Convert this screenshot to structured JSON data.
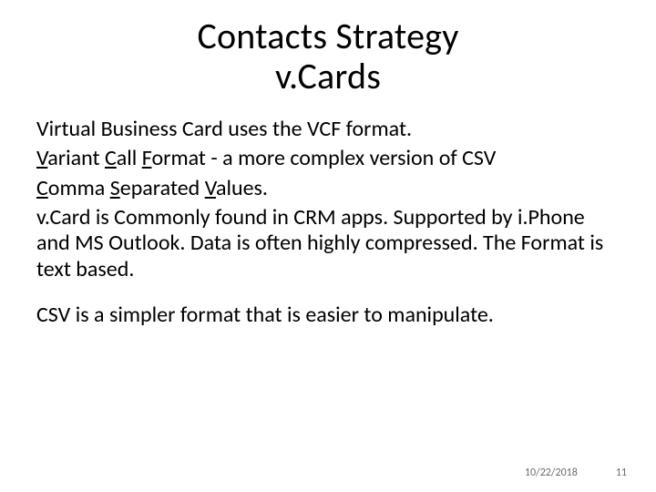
{
  "slide": {
    "title_line1": "Contacts Strategy",
    "title_line2": "v.Cards",
    "title_fontsize": 40,
    "body_fontsize": 24,
    "text_color": "#000000",
    "background_color": "#ffffff",
    "body": {
      "line1": "Virtual Business Card uses the VCF format.",
      "line2_u1": "V",
      "line2_t1": "ariant ",
      "line2_u2": "C",
      "line2_t2": "all ",
      "line2_u3": "F",
      "line2_t3": "ormat - a more complex version of CSV",
      "line3_u1": "C",
      "line3_t1": "omma ",
      "line3_u2": "S",
      "line3_t2": "eparated ",
      "line3_u3": "V",
      "line3_t3": "alues.",
      "line4": "v.Card is Commonly found in CRM apps.  Supported by i.Phone and MS Outlook.  Data is often highly compressed.  The Format is text based.",
      "line5": "CSV is a simpler format that is easier to manipulate."
    }
  },
  "footer": {
    "date": "10/22/2018",
    "page": "11",
    "fontsize": 12,
    "color": "#6b6b6b"
  }
}
